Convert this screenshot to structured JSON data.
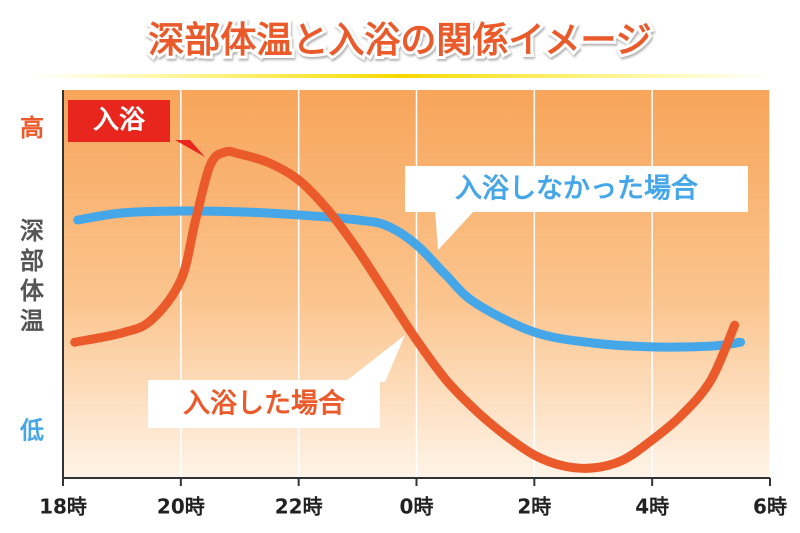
{
  "chart_data": {
    "type": "line",
    "title": "深部体温と入浴の関係イメージ",
    "y_label": "深部体温",
    "annotations": [
      "入浴"
    ],
    "xlim": [
      18,
      30
    ],
    "xticks": [
      {
        "value": 18,
        "label": "18時"
      },
      {
        "value": 20,
        "label": "20時"
      },
      {
        "value": 22,
        "label": "22時"
      },
      {
        "value": 24,
        "label": "0時"
      },
      {
        "value": 26,
        "label": "2時"
      },
      {
        "value": 28,
        "label": "4時"
      },
      {
        "value": 30,
        "label": "6時"
      }
    ],
    "ylim": [
      0,
      100
    ],
    "yticks": [
      {
        "value": 90,
        "label": "高"
      },
      {
        "value": 12,
        "label": "低"
      }
    ],
    "grid": true,
    "series": [
      {
        "name": "入浴しなかった場合",
        "color": "#45a6e8",
        "x": [
          18.25,
          19,
          20,
          21,
          22,
          23,
          23.5,
          24,
          24.5,
          25,
          26,
          27,
          28,
          29,
          29.5
        ],
        "values": [
          66.5,
          68.3,
          68.8,
          68.6,
          67.8,
          66.5,
          65,
          60.1,
          52.3,
          45.1,
          37.6,
          34.8,
          33.8,
          34,
          35
        ]
      },
      {
        "name": "入浴した場合",
        "color": "#ea5a2b",
        "x": [
          18.2,
          19,
          19.5,
          20,
          20.25,
          20.5,
          20.75,
          21,
          21.5,
          22,
          22.5,
          23,
          23.5,
          24,
          24.5,
          25,
          25.5,
          26,
          26.5,
          27,
          27.5,
          28,
          28.5,
          29,
          29.4
        ],
        "values": [
          35,
          37.4,
          40.7,
          51,
          66.5,
          80.7,
          84,
          83.5,
          81.2,
          76.8,
          69,
          58.8,
          47.2,
          35.6,
          25.3,
          17.5,
          11.1,
          5.9,
          3.1,
          2.6,
          4.6,
          9.8,
          16.2,
          25.3,
          39.4
        ]
      }
    ]
  }
}
